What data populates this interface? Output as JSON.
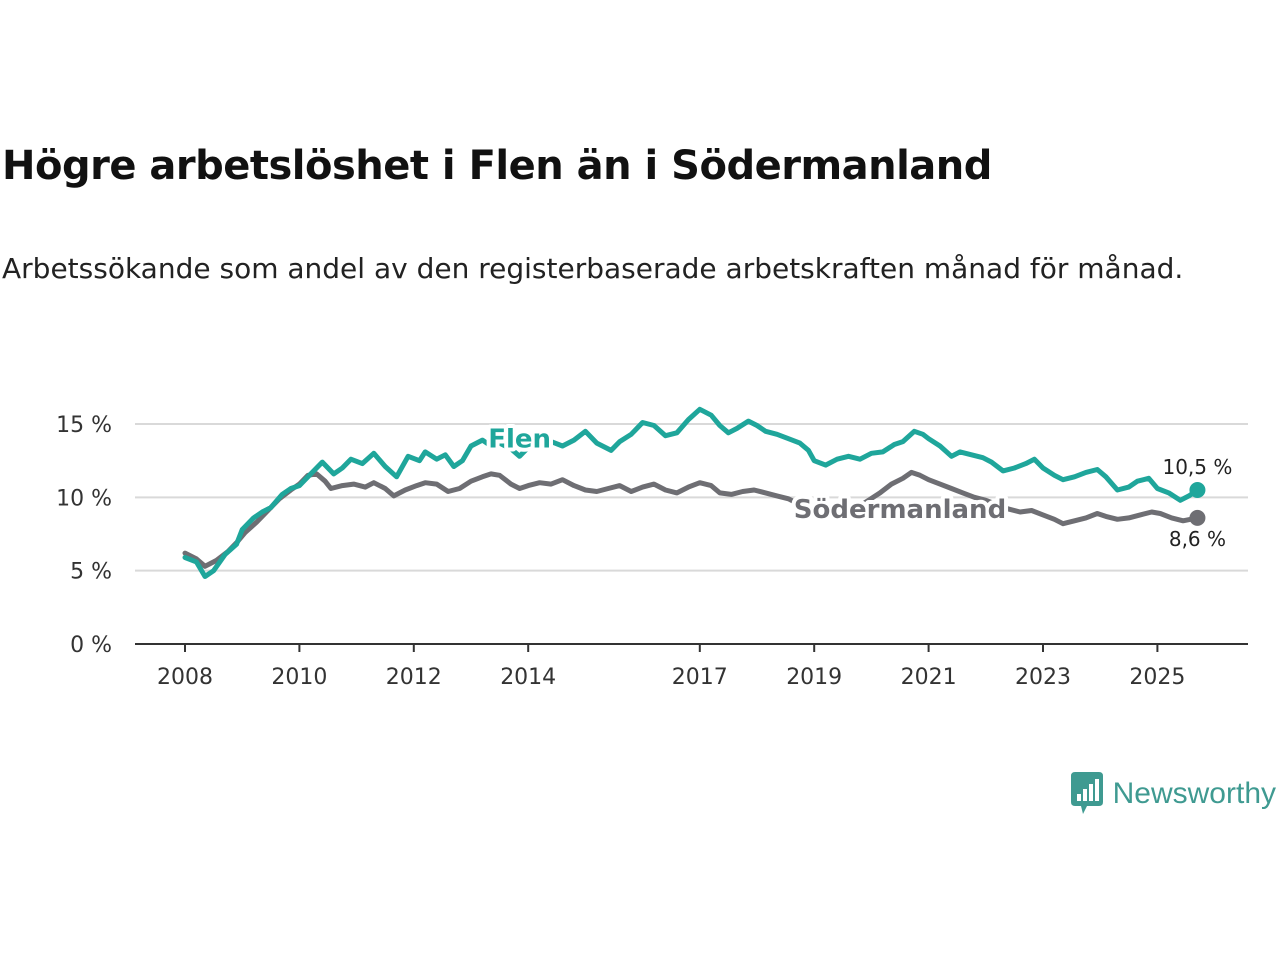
{
  "title": "Högre arbetslöshet i Flen än i Södermanland",
  "subtitle": "Arbetssökande som andel av den registerbaserade arbetskraften månad för månad.",
  "brand": {
    "name": "Newsworthy",
    "color": "#3f9a91"
  },
  "chart_data": {
    "type": "line",
    "title": "Högre arbetslöshet i Flen än i Södermanland",
    "subtitle": "Arbetssökande som andel av den registerbaserade arbetskraften månad för månad.",
    "xlabel": "",
    "ylabel": "",
    "xlim": [
      2008,
      2025.8
    ],
    "ylim": [
      0,
      15
    ],
    "grid": true,
    "y_ticks": [
      0,
      5,
      10,
      15
    ],
    "y_tick_labels": [
      "0 %",
      "5 %",
      "10 %",
      "15 %"
    ],
    "x_ticks": [
      2008,
      2010,
      2012,
      2014,
      2017,
      2019,
      2021,
      2023,
      2025
    ],
    "x_tick_labels": [
      "2008",
      "2010",
      "2012",
      "2014",
      "2017",
      "2019",
      "2021",
      "2023",
      "2025"
    ],
    "series": [
      {
        "name": "Flen",
        "color": "#1fa69b",
        "end_label": "10,5 %",
        "points": [
          [
            2008.0,
            5.9
          ],
          [
            2008.2,
            5.6
          ],
          [
            2008.35,
            4.6
          ],
          [
            2008.5,
            5.0
          ],
          [
            2008.7,
            6.1
          ],
          [
            2008.9,
            6.8
          ],
          [
            2009.0,
            7.8
          ],
          [
            2009.2,
            8.6
          ],
          [
            2009.35,
            9.0
          ],
          [
            2009.5,
            9.3
          ],
          [
            2009.7,
            10.2
          ],
          [
            2009.85,
            10.6
          ],
          [
            2010.0,
            10.8
          ],
          [
            2010.2,
            11.6
          ],
          [
            2010.4,
            12.4
          ],
          [
            2010.6,
            11.6
          ],
          [
            2010.75,
            12.0
          ],
          [
            2010.9,
            12.6
          ],
          [
            2011.1,
            12.3
          ],
          [
            2011.3,
            13.0
          ],
          [
            2011.5,
            12.1
          ],
          [
            2011.7,
            11.4
          ],
          [
            2011.9,
            12.8
          ],
          [
            2012.1,
            12.5
          ],
          [
            2012.2,
            13.1
          ],
          [
            2012.4,
            12.6
          ],
          [
            2012.55,
            12.9
          ],
          [
            2012.7,
            12.1
          ],
          [
            2012.85,
            12.5
          ],
          [
            2013.0,
            13.5
          ],
          [
            2013.2,
            13.9
          ],
          [
            2013.35,
            13.5
          ],
          [
            2013.5,
            13.7
          ],
          [
            2013.7,
            13.3
          ],
          [
            2013.85,
            12.8
          ],
          [
            2014.0,
            13.4
          ],
          [
            2014.2,
            13.6
          ],
          [
            2014.4,
            13.8
          ],
          [
            2014.6,
            13.5
          ],
          [
            2014.8,
            13.9
          ],
          [
            2015.0,
            14.5
          ],
          [
            2015.2,
            13.7
          ],
          [
            2015.45,
            13.2
          ],
          [
            2015.6,
            13.8
          ],
          [
            2015.8,
            14.3
          ],
          [
            2016.0,
            15.1
          ],
          [
            2016.2,
            14.9
          ],
          [
            2016.4,
            14.2
          ],
          [
            2016.6,
            14.4
          ],
          [
            2016.8,
            15.3
          ],
          [
            2017.0,
            16.0
          ],
          [
            2017.2,
            15.6
          ],
          [
            2017.35,
            14.9
          ],
          [
            2017.5,
            14.4
          ],
          [
            2017.65,
            14.7
          ],
          [
            2017.85,
            15.2
          ],
          [
            2018.0,
            14.9
          ],
          [
            2018.15,
            14.5
          ],
          [
            2018.35,
            14.3
          ],
          [
            2018.55,
            14.0
          ],
          [
            2018.75,
            13.7
          ],
          [
            2018.9,
            13.2
          ],
          [
            2019.0,
            12.5
          ],
          [
            2019.2,
            12.2
          ],
          [
            2019.4,
            12.6
          ],
          [
            2019.6,
            12.8
          ],
          [
            2019.8,
            12.6
          ],
          [
            2020.0,
            13.0
          ],
          [
            2020.2,
            13.1
          ],
          [
            2020.4,
            13.6
          ],
          [
            2020.55,
            13.8
          ],
          [
            2020.75,
            14.5
          ],
          [
            2020.9,
            14.3
          ],
          [
            2021.0,
            14.0
          ],
          [
            2021.2,
            13.5
          ],
          [
            2021.4,
            12.8
          ],
          [
            2021.55,
            13.1
          ],
          [
            2021.75,
            12.9
          ],
          [
            2021.95,
            12.7
          ],
          [
            2022.1,
            12.4
          ],
          [
            2022.3,
            11.8
          ],
          [
            2022.5,
            12.0
          ],
          [
            2022.7,
            12.3
          ],
          [
            2022.85,
            12.6
          ],
          [
            2023.0,
            12.0
          ],
          [
            2023.2,
            11.5
          ],
          [
            2023.35,
            11.2
          ],
          [
            2023.55,
            11.4
          ],
          [
            2023.75,
            11.7
          ],
          [
            2023.95,
            11.9
          ],
          [
            2024.1,
            11.4
          ],
          [
            2024.3,
            10.5
          ],
          [
            2024.5,
            10.7
          ],
          [
            2024.65,
            11.1
          ],
          [
            2024.85,
            11.3
          ],
          [
            2025.0,
            10.6
          ],
          [
            2025.2,
            10.3
          ],
          [
            2025.4,
            9.8
          ],
          [
            2025.55,
            10.1
          ],
          [
            2025.7,
            10.5
          ]
        ]
      },
      {
        "name": "Södermanland",
        "color": "#6e6e73",
        "end_label": "8,6 %",
        "points": [
          [
            2008.0,
            6.2
          ],
          [
            2008.2,
            5.8
          ],
          [
            2008.35,
            5.3
          ],
          [
            2008.55,
            5.7
          ],
          [
            2008.75,
            6.3
          ],
          [
            2008.9,
            6.9
          ],
          [
            2009.05,
            7.6
          ],
          [
            2009.25,
            8.3
          ],
          [
            2009.45,
            9.1
          ],
          [
            2009.65,
            9.9
          ],
          [
            2009.85,
            10.5
          ],
          [
            2010.0,
            10.9
          ],
          [
            2010.15,
            11.5
          ],
          [
            2010.3,
            11.6
          ],
          [
            2010.45,
            11.1
          ],
          [
            2010.55,
            10.6
          ],
          [
            2010.75,
            10.8
          ],
          [
            2010.95,
            10.9
          ],
          [
            2011.15,
            10.7
          ],
          [
            2011.3,
            11.0
          ],
          [
            2011.5,
            10.6
          ],
          [
            2011.65,
            10.1
          ],
          [
            2011.85,
            10.5
          ],
          [
            2012.05,
            10.8
          ],
          [
            2012.2,
            11.0
          ],
          [
            2012.4,
            10.9
          ],
          [
            2012.6,
            10.4
          ],
          [
            2012.8,
            10.6
          ],
          [
            2013.0,
            11.1
          ],
          [
            2013.2,
            11.4
          ],
          [
            2013.35,
            11.6
          ],
          [
            2013.5,
            11.5
          ],
          [
            2013.7,
            10.9
          ],
          [
            2013.85,
            10.6
          ],
          [
            2014.0,
            10.8
          ],
          [
            2014.2,
            11.0
          ],
          [
            2014.4,
            10.9
          ],
          [
            2014.6,
            11.2
          ],
          [
            2014.8,
            10.8
          ],
          [
            2015.0,
            10.5
          ],
          [
            2015.2,
            10.4
          ],
          [
            2015.4,
            10.6
          ],
          [
            2015.6,
            10.8
          ],
          [
            2015.8,
            10.4
          ],
          [
            2016.0,
            10.7
          ],
          [
            2016.2,
            10.9
          ],
          [
            2016.4,
            10.5
          ],
          [
            2016.6,
            10.3
          ],
          [
            2016.8,
            10.7
          ],
          [
            2017.0,
            11.0
          ],
          [
            2017.2,
            10.8
          ],
          [
            2017.35,
            10.3
          ],
          [
            2017.55,
            10.2
          ],
          [
            2017.75,
            10.4
          ],
          [
            2017.95,
            10.5
          ],
          [
            2018.15,
            10.3
          ],
          [
            2018.35,
            10.1
          ],
          [
            2018.55,
            9.9
          ],
          [
            2018.75,
            9.5
          ],
          [
            2018.95,
            9.2
          ],
          [
            2019.15,
            9.0
          ],
          [
            2019.35,
            8.9
          ],
          [
            2019.55,
            9.1
          ],
          [
            2019.75,
            9.3
          ],
          [
            2019.95,
            9.8
          ],
          [
            2020.15,
            10.3
          ],
          [
            2020.35,
            10.9
          ],
          [
            2020.55,
            11.3
          ],
          [
            2020.7,
            11.7
          ],
          [
            2020.85,
            11.5
          ],
          [
            2021.0,
            11.2
          ],
          [
            2021.2,
            10.9
          ],
          [
            2021.4,
            10.6
          ],
          [
            2021.6,
            10.3
          ],
          [
            2021.8,
            10.0
          ],
          [
            2022.0,
            9.8
          ],
          [
            2022.2,
            9.5
          ],
          [
            2022.4,
            9.2
          ],
          [
            2022.6,
            9.0
          ],
          [
            2022.8,
            9.1
          ],
          [
            2023.0,
            8.8
          ],
          [
            2023.2,
            8.5
          ],
          [
            2023.35,
            8.2
          ],
          [
            2023.55,
            8.4
          ],
          [
            2023.75,
            8.6
          ],
          [
            2023.95,
            8.9
          ],
          [
            2024.1,
            8.7
          ],
          [
            2024.3,
            8.5
          ],
          [
            2024.5,
            8.6
          ],
          [
            2024.7,
            8.8
          ],
          [
            2024.9,
            9.0
          ],
          [
            2025.05,
            8.9
          ],
          [
            2025.25,
            8.6
          ],
          [
            2025.45,
            8.4
          ],
          [
            2025.7,
            8.6
          ]
        ]
      }
    ]
  }
}
